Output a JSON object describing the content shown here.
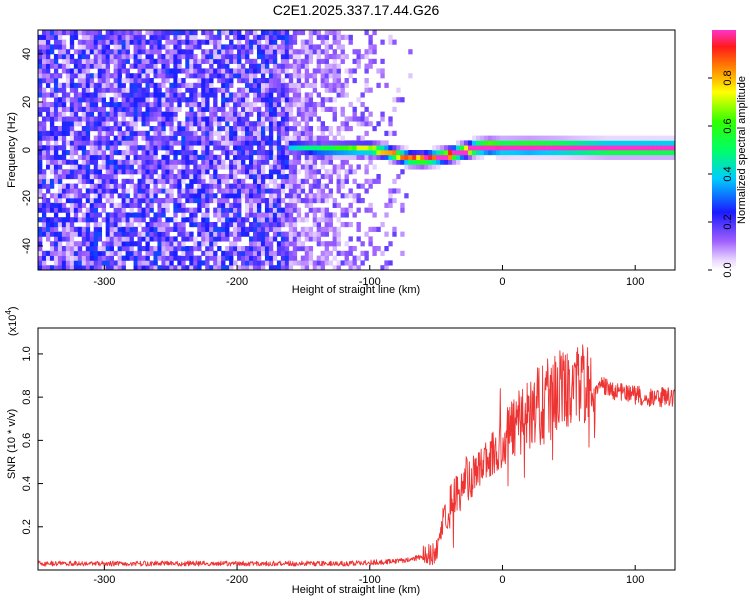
{
  "title": "C2E1.2025.337.17.44.G26",
  "colorbar": {
    "label": "Normalized spectral amplitude",
    "ticks": [
      "0.0",
      "0.2",
      "0.4",
      "0.6",
      "0.8"
    ],
    "tick_values": [
      0.0,
      0.2,
      0.4,
      0.6,
      0.8
    ],
    "range": [
      0,
      1
    ]
  },
  "chart_data": [
    {
      "type": "heatmap",
      "xlabel": "Height of straight line (km)",
      "ylabel": "Frequency (Hz)",
      "xlim": [
        -350,
        130
      ],
      "ylim": [
        -50,
        50
      ],
      "xticks": [
        -300,
        -200,
        -100,
        0,
        100
      ],
      "xtick_labels": [
        "-300",
        "-200",
        "-100",
        "0",
        "100"
      ],
      "yticks": [
        -40,
        -20,
        0,
        20,
        40
      ],
      "ytick_labels": [
        "-40",
        "-20",
        "0",
        "20",
        "40"
      ],
      "noise_region_x": [
        -350,
        -65
      ],
      "signal_start_x": -160,
      "signal_track": [
        {
          "x": -160,
          "f": 1.5
        },
        {
          "x": -140,
          "f": 0.5
        },
        {
          "x": -120,
          "f": 0.5
        },
        {
          "x": -100,
          "f": 0.5
        },
        {
          "x": -90,
          "f": -0.5
        },
        {
          "x": -80,
          "f": -2.0
        },
        {
          "x": -70,
          "f": -3.5
        },
        {
          "x": -60,
          "f": -3.8
        },
        {
          "x": -50,
          "f": -3.0
        },
        {
          "x": -40,
          "f": -2.0
        },
        {
          "x": -30,
          "f": -0.5
        },
        {
          "x": -20,
          "f": 1.0
        },
        {
          "x": -10,
          "f": 1.5
        },
        {
          "x": 0,
          "f": 1.2
        },
        {
          "x": 20,
          "f": 1.3
        },
        {
          "x": 40,
          "f": 1.2
        },
        {
          "x": 60,
          "f": 1.0
        },
        {
          "x": 80,
          "f": 0.8
        },
        {
          "x": 100,
          "f": 0.8
        },
        {
          "x": 130,
          "f": 0.8
        }
      ]
    },
    {
      "type": "line",
      "xlabel": "Height of straight line (km)",
      "ylabel": "SNR (10 * v/v)",
      "y_scale_label": "(x10",
      "y_scale_exp": "4",
      "y_scale_close": ")",
      "xlim": [
        -350,
        130
      ],
      "ylim": [
        0,
        1.12
      ],
      "xticks": [
        -300,
        -200,
        -100,
        0,
        100
      ],
      "xtick_labels": [
        "-300",
        "-200",
        "-100",
        "0",
        "100"
      ],
      "yticks": [
        0.2,
        0.4,
        0.6,
        0.8,
        1.0
      ],
      "ytick_labels": [
        "0.2",
        "0.4",
        "0.6",
        "0.8",
        "1.0"
      ],
      "color": "#ee3333",
      "series": [
        {
          "name": "SNR",
          "x": [
            -350,
            -300,
            -250,
            -200,
            -150,
            -120,
            -100,
            -80,
            -70,
            -60,
            -50,
            -45,
            -40,
            -30,
            -20,
            -10,
            0,
            10,
            20,
            30,
            40,
            50,
            60,
            70,
            80,
            90,
            100,
            110,
            120,
            130
          ],
          "y": [
            0.03,
            0.03,
            0.03,
            0.03,
            0.03,
            0.03,
            0.035,
            0.04,
            0.05,
            0.06,
            0.08,
            0.2,
            0.3,
            0.38,
            0.46,
            0.53,
            0.6,
            0.66,
            0.72,
            0.77,
            0.82,
            0.85,
            0.86,
            0.86,
            0.84,
            0.82,
            0.81,
            0.8,
            0.8,
            0.8
          ]
        }
      ]
    }
  ]
}
